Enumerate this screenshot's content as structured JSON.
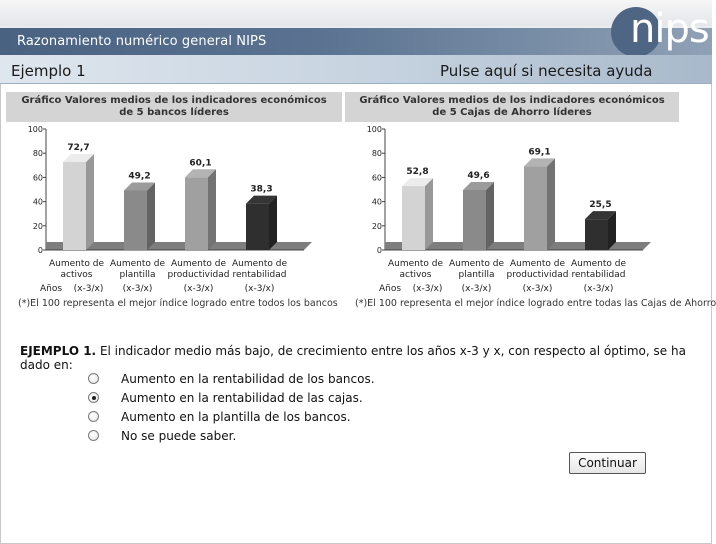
{
  "header": {
    "title": "Razonamiento numérico general NIPS",
    "logo_text": "nips"
  },
  "subbar": {
    "example": "Ejemplo 1",
    "help": "Pulse aquí si necesita ayuda"
  },
  "charts": [
    {
      "title_line1": "Gráfico Valores medios de los indicadores económicos",
      "title_line2": "de 5 bancos líderes",
      "footnote": "(*)El 100 representa el mejor índice logrado entre todos los bancos"
    },
    {
      "title_line1": "Gráfico Valores medios de los indicadores económicos",
      "title_line2": "de 5 Cajas de Ahorro líderes",
      "footnote": "(*)El 100 representa el mejor índice logrado entre todas las Cajas de Ahorro"
    }
  ],
  "chart_data": [
    {
      "type": "bar",
      "title": "Gráfico Valores medios de los indicadores económicos de 5 bancos líderes",
      "categories": [
        "Aumento de activos",
        "Aumento de plantilla",
        "Aumento de productividad",
        "Aumento de rentabilidad"
      ],
      "category_lines": [
        [
          "Aumento de",
          "activos"
        ],
        [
          "Aumento de",
          "plantilla"
        ],
        [
          "Aumento de",
          "productividad"
        ],
        [
          "Aumento de",
          "rentabilidad"
        ]
      ],
      "row_label": "Años",
      "period_labels": [
        "(x-3/x)",
        "(x-3/x)",
        "(x-3/x)",
        "(x-3/x)"
      ],
      "values": [
        72.7,
        49.2,
        60.1,
        38.3
      ],
      "value_labels": [
        "72,7",
        "49,2",
        "60,1",
        "38,3"
      ],
      "colors": [
        "#d3d3d3",
        "#8a8a8a",
        "#a0a0a0",
        "#2f2f2f"
      ],
      "yticks": [
        0,
        20,
        40,
        60,
        80,
        100
      ],
      "ylim": [
        0,
        100
      ],
      "grid": false
    },
    {
      "type": "bar",
      "title": "Gráfico Valores medios de los indicadores económicos de 5 Cajas de Ahorro líderes",
      "categories": [
        "Aumento de activos",
        "Aumento de plantilla",
        "Aumento de productividad",
        "Aumento de rentabilidad"
      ],
      "category_lines": [
        [
          "Aumento de",
          "activos"
        ],
        [
          "Aumento de",
          "plantilla"
        ],
        [
          "Aumento de",
          "productividad"
        ],
        [
          "Aumento de",
          "rentabilidad"
        ]
      ],
      "row_label": "Años",
      "period_labels": [
        "(x-3/x)",
        "(x-3/x)",
        "(x-3/x)",
        "(x-3/x)"
      ],
      "values": [
        52.8,
        49.6,
        69.1,
        25.5
      ],
      "value_labels": [
        "52,8",
        "49,6",
        "69,1",
        "25,5"
      ],
      "colors": [
        "#d3d3d3",
        "#8a8a8a",
        "#a0a0a0",
        "#2f2f2f"
      ],
      "yticks": [
        0,
        20,
        40,
        60,
        80,
        100
      ],
      "ylim": [
        0,
        100
      ],
      "grid": false
    }
  ],
  "question": {
    "number": "EJEMPLO 1.",
    "text": "El indicador medio más bajo, de crecimiento entre los años x-3 y x, con respecto al óptimo, se ha dado en:"
  },
  "options": [
    {
      "label": "Aumento en la rentabilidad de los bancos.",
      "selected": false
    },
    {
      "label": "Aumento en la rentabilidad de las cajas.",
      "selected": true
    },
    {
      "label": "Aumento en la plantilla de los bancos.",
      "selected": false
    },
    {
      "label": "No se puede saber.",
      "selected": false
    }
  ],
  "continue_label": "Continuar"
}
